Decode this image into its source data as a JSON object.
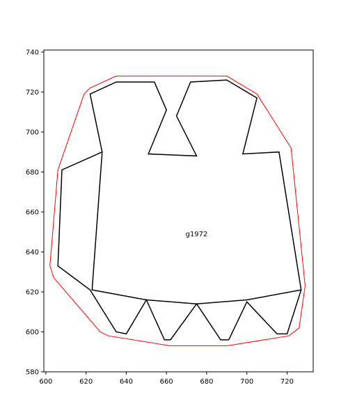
{
  "chart_data": {
    "type": "line",
    "title": "",
    "xlabel": "",
    "ylabel": "",
    "xlim": [
      599,
      733
    ],
    "ylim": [
      580,
      741
    ],
    "xticks": [
      600,
      620,
      640,
      660,
      680,
      700,
      720
    ],
    "yticks": [
      580,
      600,
      620,
      640,
      660,
      680,
      700,
      720,
      740
    ],
    "grid": false,
    "legend": "none",
    "annotation": {
      "text": "g1972",
      "x": 675,
      "y": 649
    },
    "series": [
      {
        "color": "#ff0000",
        "closed": true,
        "points": [
          [
            635,
            728
          ],
          [
            690,
            728
          ],
          [
            705,
            719
          ],
          [
            722,
            692
          ],
          [
            729,
            623
          ],
          [
            726,
            602
          ],
          [
            721,
            598
          ],
          [
            690,
            593
          ],
          [
            662,
            593
          ],
          [
            631,
            598
          ],
          [
            627,
            600
          ],
          [
            604,
            627
          ],
          [
            602,
            633
          ],
          [
            606,
            681
          ],
          [
            619,
            719
          ],
          [
            622,
            722
          ]
        ]
      },
      {
        "color": "#000000",
        "closed": true,
        "points": [
          [
            622,
            719
          ],
          [
            635,
            725
          ],
          [
            654,
            725
          ],
          [
            660,
            711
          ],
          [
            651,
            689
          ],
          [
            675,
            688
          ],
          [
            665,
            708
          ],
          [
            672,
            725
          ],
          [
            690,
            726
          ],
          [
            705,
            717
          ],
          [
            698,
            689
          ],
          [
            716,
            690
          ],
          [
            727,
            621
          ],
          [
            720,
            599
          ],
          [
            715,
            599
          ],
          [
            700,
            615
          ],
          [
            691,
            596
          ],
          [
            687,
            596
          ],
          [
            675,
            614
          ],
          [
            662,
            596
          ],
          [
            659,
            596
          ],
          [
            650,
            616
          ],
          [
            640,
            599
          ],
          [
            635,
            600
          ],
          [
            622,
            621
          ],
          [
            606,
            633
          ],
          [
            608,
            681
          ],
          [
            628,
            690
          ]
        ]
      },
      {
        "color": "#000000",
        "closed": false,
        "points": [
          [
            628,
            690
          ],
          [
            623,
            621
          ],
          [
            650,
            616
          ],
          [
            675,
            614
          ],
          [
            700,
            616
          ],
          [
            727,
            621
          ]
        ]
      }
    ]
  }
}
